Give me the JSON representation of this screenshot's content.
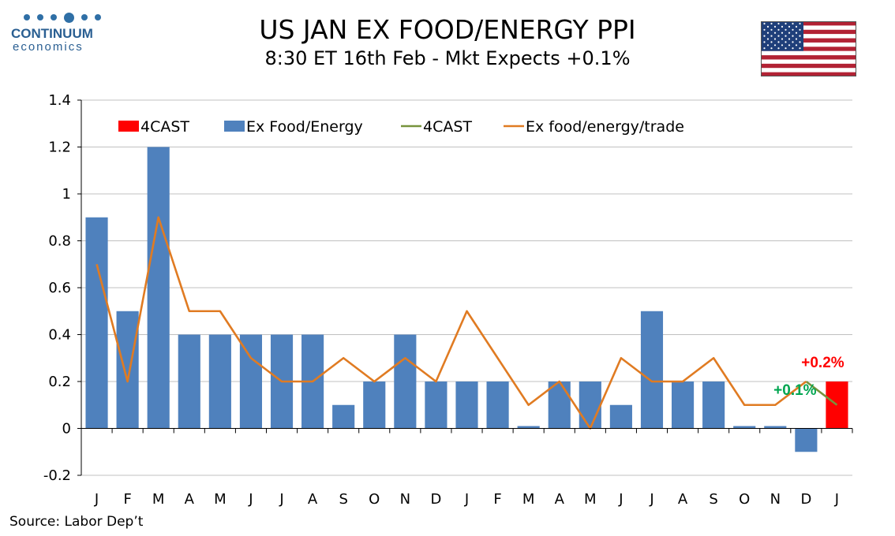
{
  "logo": {
    "brand": "CONTINUUM",
    "sub": "economics"
  },
  "title": "US JAN EX FOOD/ENERGY PPI",
  "subtitle": "8:30 ET 16th Feb - Mkt Expects +0.1%",
  "source": "Source: Labor Dep’t",
  "colors": {
    "bar": "#4f81bd",
    "forecast_bar": "#ff0000",
    "line": "#e07b22",
    "forecast_line": "#77933c",
    "grid": "#c0c0c0",
    "annot_red": "#ff0000",
    "annot_green": "#00a550"
  },
  "chart_data": {
    "type": "bar",
    "categories": [
      "J",
      "F",
      "M",
      "A",
      "M",
      "J",
      "J",
      "A",
      "S",
      "O",
      "N",
      "D",
      "J",
      "F",
      "M",
      "A",
      "M",
      "J",
      "J",
      "A",
      "S",
      "O",
      "N",
      "D",
      "J"
    ],
    "ylim": [
      -0.2,
      1.4
    ],
    "yticks": [
      "-0.2",
      "0",
      "0.2",
      "0.4",
      "0.6",
      "0.8",
      "1",
      "1.2",
      "1.4"
    ],
    "ytick_values": [
      -0.2,
      0,
      0.2,
      0.4,
      0.6,
      0.8,
      1.0,
      1.2,
      1.4
    ],
    "grid": true,
    "legend_position": "top-left",
    "series": [
      {
        "name": "4CAST",
        "kind": "bar",
        "values": [
          null,
          null,
          null,
          null,
          null,
          null,
          null,
          null,
          null,
          null,
          null,
          null,
          null,
          null,
          null,
          null,
          null,
          null,
          null,
          null,
          null,
          null,
          null,
          null,
          0.2
        ]
      },
      {
        "name": "Ex Food/Energy",
        "kind": "bar",
        "values": [
          0.9,
          0.5,
          1.2,
          0.4,
          0.4,
          0.4,
          0.4,
          0.4,
          0.1,
          0.2,
          0.4,
          0.2,
          0.2,
          0.2,
          0.01,
          0.2,
          0.2,
          0.1,
          0.5,
          0.2,
          0.2,
          0.01,
          0.01,
          -0.1,
          null
        ]
      },
      {
        "name": "4CAST",
        "kind": "line",
        "values": [
          null,
          null,
          null,
          null,
          null,
          null,
          null,
          null,
          null,
          null,
          null,
          null,
          null,
          null,
          null,
          null,
          null,
          null,
          null,
          null,
          null,
          null,
          null,
          0.2,
          0.1
        ]
      },
      {
        "name": "Ex food/energy/trade",
        "kind": "line",
        "values": [
          0.7,
          0.2,
          0.9,
          0.5,
          0.5,
          0.3,
          0.2,
          0.2,
          0.3,
          0.2,
          0.3,
          0.2,
          0.5,
          0.3,
          0.1,
          0.2,
          0.0,
          0.3,
          0.2,
          0.2,
          0.3,
          0.1,
          0.1,
          0.2,
          null
        ]
      }
    ],
    "annotations": [
      {
        "text": "+0.2%",
        "category_index": 24,
        "value": 0.2,
        "color": "red"
      },
      {
        "text": "+0.1%",
        "category_index": 23,
        "value": 0.1,
        "color": "green"
      }
    ]
  }
}
